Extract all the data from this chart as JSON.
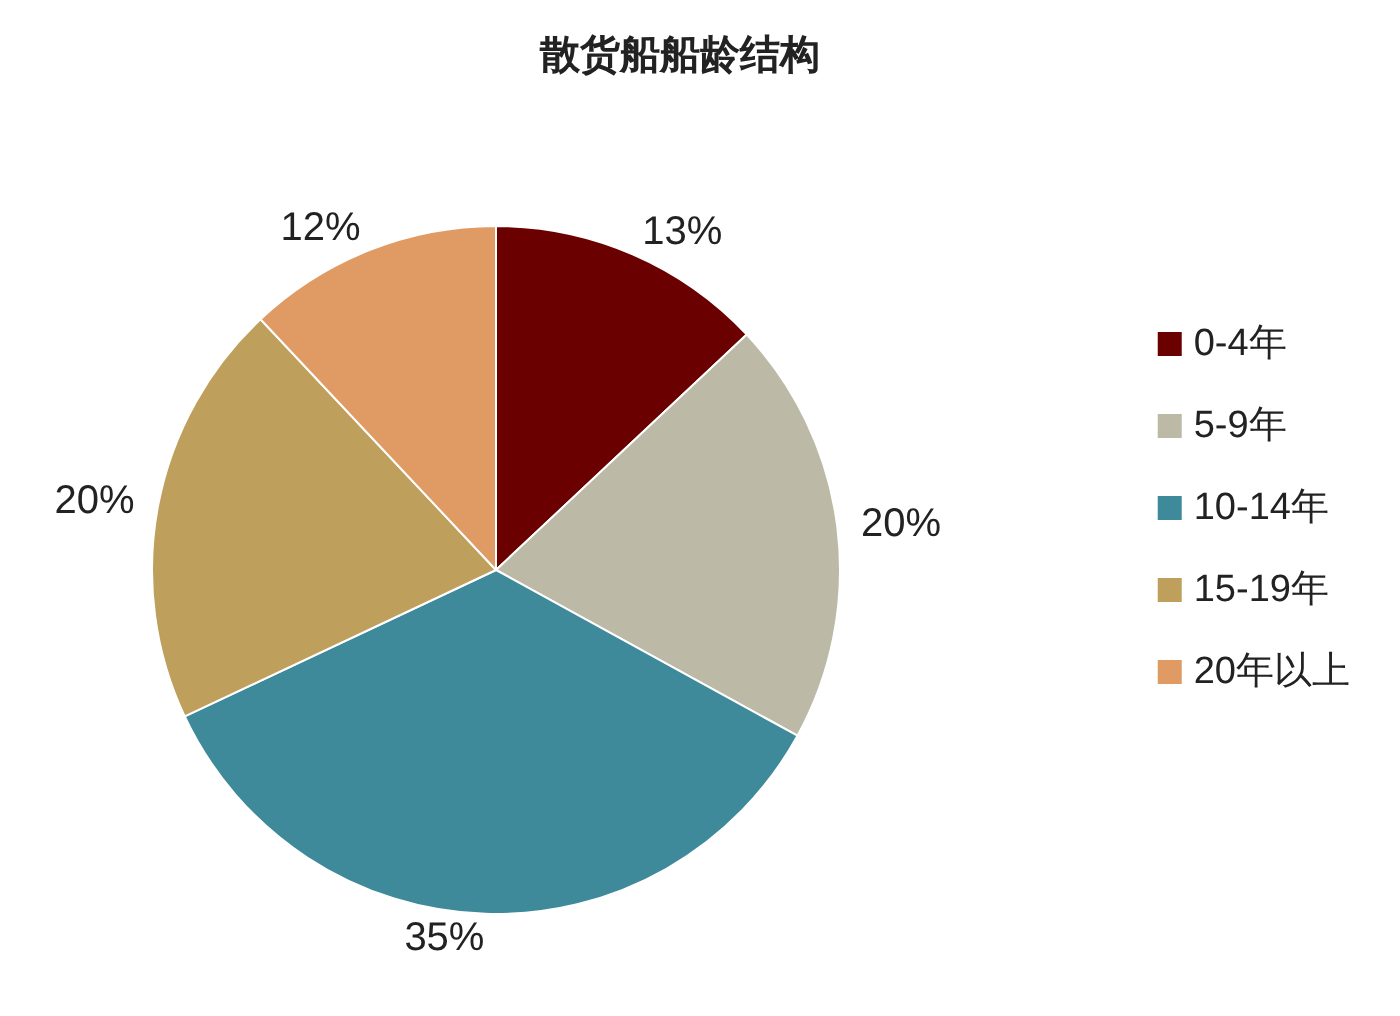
{
  "chart_data": {
    "type": "pie",
    "title": "散货船船龄结构",
    "categories": [
      "0-4年",
      "5-9年",
      "10-14年",
      "15-19年",
      "20年以上"
    ],
    "values": [
      13,
      20,
      35,
      20,
      12
    ],
    "value_labels": [
      "13%",
      "20%",
      "35%",
      "20%",
      "12%"
    ],
    "colors": [
      "#6b0000",
      "#bcbaa6",
      "#3e8a9a",
      "#bf9f5c",
      "#e09a64"
    ],
    "legend": "right"
  }
}
